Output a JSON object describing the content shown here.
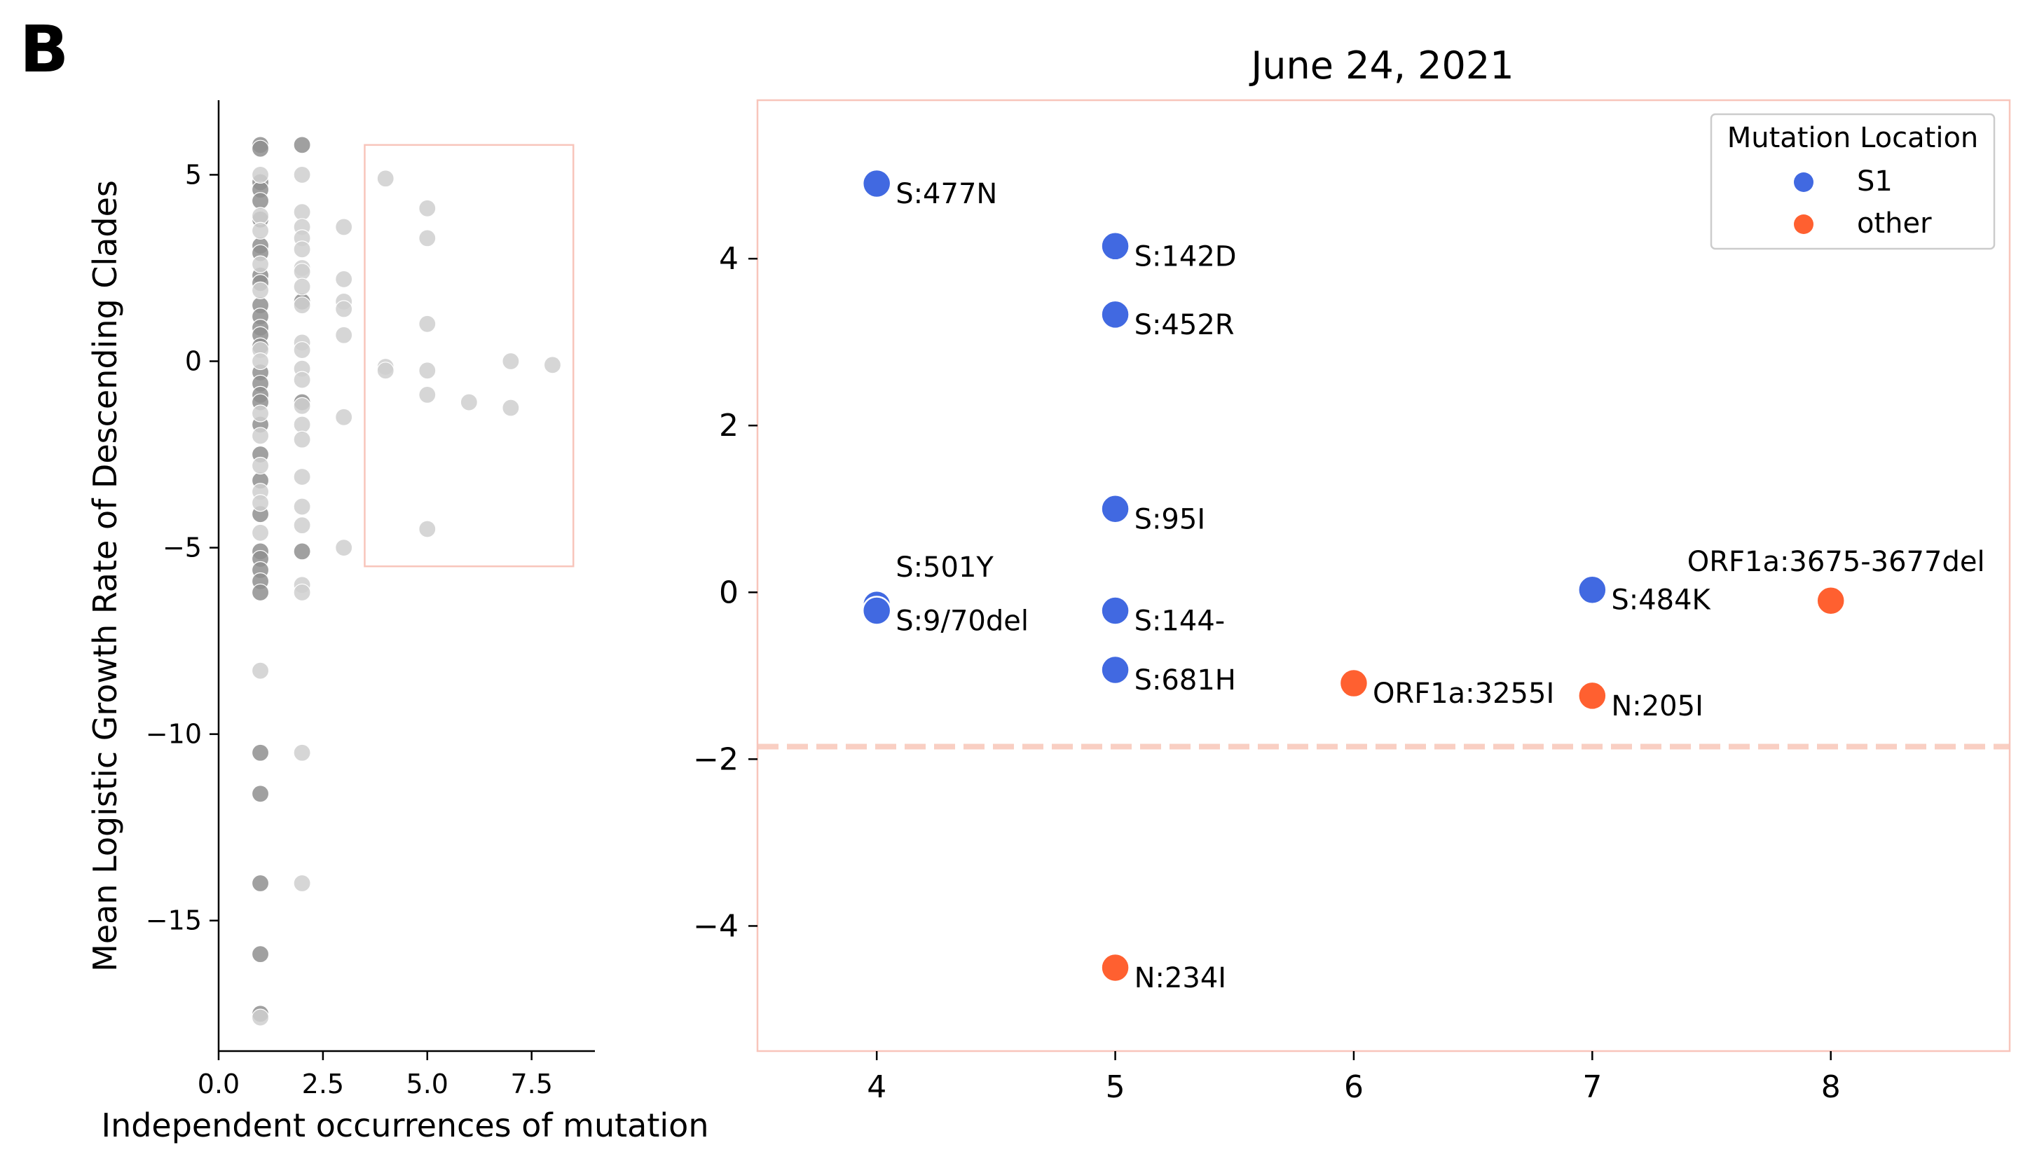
{
  "panel_letter": "B",
  "colors": {
    "S1": "#4169e1",
    "other": "#ff6030",
    "highlight": "#f8c5bb",
    "cutoff": "#f9cfc3",
    "overview_light": "#cfcfcf",
    "overview_dark": "#8f8f8f"
  },
  "chart_data": [
    {
      "type": "scatter",
      "title": "",
      "xlabel": "Independent occurrences of mutation",
      "ylabel": "Mean Logistic Growth Rate of Descending Clades",
      "xlim": [
        0,
        9
      ],
      "ylim": [
        -18.5,
        7
      ],
      "xticks": [
        0.0,
        2.5,
        5.0,
        7.5
      ],
      "xtick_labels": [
        "0.0",
        "2.5",
        "5.0",
        "7.5"
      ],
      "yticks": [
        5,
        0,
        -5,
        -10,
        -15
      ],
      "ytick_labels": [
        "5",
        "0",
        "−5",
        "−10",
        "−15"
      ],
      "highlight_box": {
        "x": [
          3.5,
          8.5
        ],
        "y": [
          -5.5,
          5.8
        ]
      },
      "series": [
        {
          "color_key": "overview_dark",
          "points": [
            [
              1,
              5.8
            ],
            [
              1,
              5.7
            ],
            [
              1,
              4.8
            ],
            [
              1,
              4.6
            ],
            [
              1,
              4.3
            ],
            [
              1,
              3.8
            ],
            [
              1,
              3.1
            ],
            [
              1,
              2.9
            ],
            [
              1,
              2.3
            ],
            [
              1,
              2.1
            ],
            [
              1,
              1.5
            ],
            [
              1,
              1.2
            ],
            [
              1,
              0.9
            ],
            [
              1,
              0.7
            ],
            [
              1,
              0.4
            ],
            [
              1,
              -0.3
            ],
            [
              1,
              -0.6
            ],
            [
              1,
              -0.9
            ],
            [
              1,
              -1.1
            ],
            [
              1,
              -1.7
            ],
            [
              1,
              -2.5
            ],
            [
              1,
              -3.2
            ],
            [
              1,
              -4.1
            ],
            [
              1,
              -5.1
            ],
            [
              1,
              -5.3
            ],
            [
              1,
              -5.6
            ],
            [
              1,
              -5.9
            ],
            [
              1,
              -6.2
            ],
            [
              1,
              -10.5
            ],
            [
              1,
              -11.6
            ],
            [
              1,
              -14.0
            ],
            [
              1,
              -15.9
            ],
            [
              1,
              -17.5
            ],
            [
              2,
              5.8
            ],
            [
              2,
              1.6
            ],
            [
              2,
              -1.1
            ],
            [
              2,
              -5.1
            ]
          ]
        },
        {
          "color_key": "overview_light",
          "points": [
            [
              1,
              5.0
            ],
            [
              1,
              3.9
            ],
            [
              1,
              3.5
            ],
            [
              1,
              2.6
            ],
            [
              1,
              1.9
            ],
            [
              1,
              0.3
            ],
            [
              1,
              0.0
            ],
            [
              1,
              -1.4
            ],
            [
              1,
              -2.0
            ],
            [
              1,
              -2.8
            ],
            [
              1,
              -3.5
            ],
            [
              1,
              -3.8
            ],
            [
              1,
              -4.6
            ],
            [
              1,
              -8.3
            ],
            [
              1,
              -17.6
            ],
            [
              2,
              5.0
            ],
            [
              2,
              4.0
            ],
            [
              2,
              3.6
            ],
            [
              2,
              3.3
            ],
            [
              2,
              3.0
            ],
            [
              2,
              2.5
            ],
            [
              2,
              2.4
            ],
            [
              2,
              2.0
            ],
            [
              2,
              1.5
            ],
            [
              2,
              0.5
            ],
            [
              2,
              0.3
            ],
            [
              2,
              -0.2
            ],
            [
              2,
              -0.5
            ],
            [
              2,
              -1.2
            ],
            [
              2,
              -1.7
            ],
            [
              2,
              -2.1
            ],
            [
              2,
              -3.1
            ],
            [
              2,
              -3.9
            ],
            [
              2,
              -4.4
            ],
            [
              2,
              -6.0
            ],
            [
              2,
              -6.2
            ],
            [
              2,
              -10.5
            ],
            [
              2,
              -14.0
            ],
            [
              3,
              3.6
            ],
            [
              3,
              2.2
            ],
            [
              3,
              1.6
            ],
            [
              3,
              1.4
            ],
            [
              3,
              0.7
            ],
            [
              3,
              -1.5
            ],
            [
              3,
              -5.0
            ],
            [
              4,
              4.9
            ],
            [
              4,
              -0.15
            ],
            [
              4,
              -0.25
            ],
            [
              5,
              4.1
            ],
            [
              5,
              3.3
            ],
            [
              5,
              1.0
            ],
            [
              5,
              -0.25
            ],
            [
              5,
              -0.9
            ],
            [
              5,
              -4.5
            ],
            [
              6,
              -1.1
            ],
            [
              7,
              0.0
            ],
            [
              7,
              -1.25
            ],
            [
              8,
              -0.1
            ]
          ]
        }
      ]
    },
    {
      "type": "scatter",
      "title": "June 24, 2021",
      "xlabel": "",
      "ylabel": "",
      "xlim": [
        3.5,
        8.75
      ],
      "ylim": [
        -5.5,
        5.9
      ],
      "xticks": [
        4,
        5,
        6,
        7,
        8
      ],
      "xtick_labels": [
        "4",
        "5",
        "6",
        "7",
        "8"
      ],
      "yticks": [
        4,
        2,
        0,
        -2,
        -4
      ],
      "ytick_labels": [
        "4",
        "2",
        "0",
        "−2",
        "−4"
      ],
      "cutoff_line_y": -1.85,
      "legend": {
        "title": "Mutation Location",
        "position": "top-right",
        "entries": [
          {
            "label": "S1",
            "color_key": "S1"
          },
          {
            "label": "other",
            "color_key": "other"
          }
        ]
      },
      "points": [
        {
          "label": "S:477N",
          "x": 4,
          "y": 4.9,
          "location": "S1"
        },
        {
          "label": "S:142D",
          "x": 5,
          "y": 4.15,
          "location": "S1"
        },
        {
          "label": "S:452R",
          "x": 5,
          "y": 3.33,
          "location": "S1"
        },
        {
          "label": "S:95I",
          "x": 5,
          "y": 1.0,
          "location": "S1"
        },
        {
          "label": "S:501Y",
          "x": 4,
          "y": -0.15,
          "location": "S1"
        },
        {
          "label": "S:9/70del",
          "x": 4,
          "y": -0.22,
          "location": "S1"
        },
        {
          "label": "S:144-",
          "x": 5,
          "y": -0.22,
          "location": "S1"
        },
        {
          "label": "S:681H",
          "x": 5,
          "y": -0.93,
          "location": "S1"
        },
        {
          "label": "S:484K",
          "x": 7,
          "y": 0.03,
          "location": "S1"
        },
        {
          "label": "ORF1a:3255I",
          "x": 6,
          "y": -1.09,
          "location": "other"
        },
        {
          "label": "N:205I",
          "x": 7,
          "y": -1.24,
          "location": "other"
        },
        {
          "label": "ORF1a:3675-3677del",
          "x": 8,
          "y": -0.1,
          "location": "other"
        },
        {
          "label": "N:234I",
          "x": 5,
          "y": -4.5,
          "location": "other"
        }
      ]
    }
  ]
}
